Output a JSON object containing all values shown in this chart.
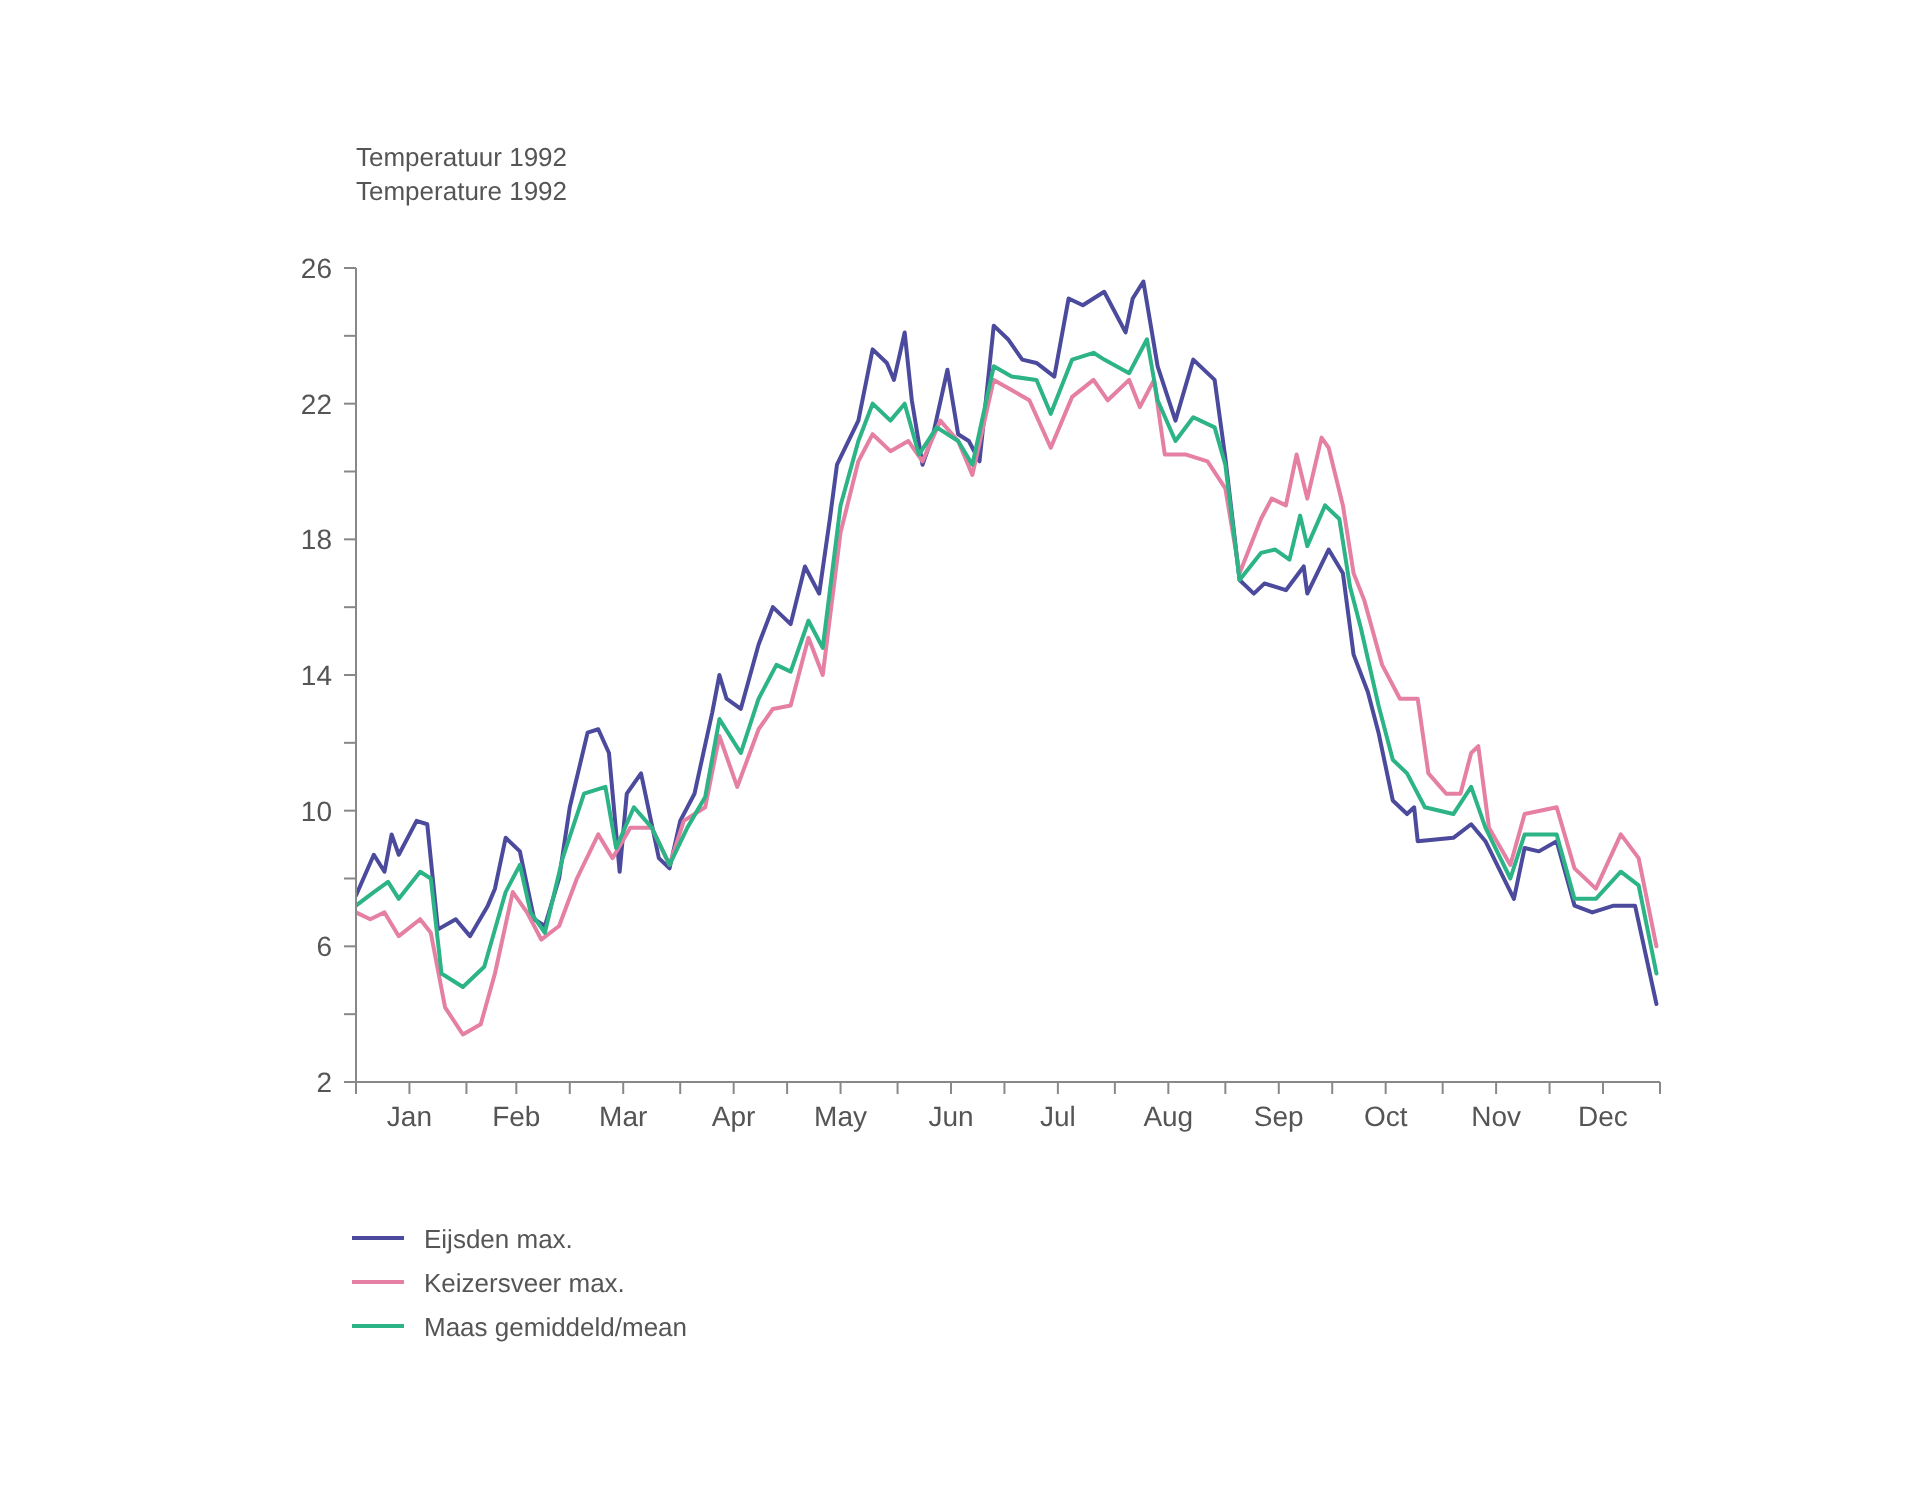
{
  "chart_data": {
    "type": "line",
    "title": "Temperatuur 1992",
    "subtitle": "Temperature 1992",
    "xlim": [
      "1992-01-01",
      "1993-01-01"
    ],
    "xticks": [
      {
        "value": "1992-01-01",
        "label": null
      },
      {
        "value": "1992-01-16",
        "label": "Jan"
      },
      {
        "value": "1992-02-01",
        "label": null
      },
      {
        "value": "1992-02-15",
        "label": "Feb"
      },
      {
        "value": "1992-03-01",
        "label": null
      },
      {
        "value": "1992-03-16",
        "label": "Mar"
      },
      {
        "value": "1992-04-01",
        "label": null
      },
      {
        "value": "1992-04-16",
        "label": "Apr"
      },
      {
        "value": "1992-05-01",
        "label": null
      },
      {
        "value": "1992-05-16",
        "label": "May"
      },
      {
        "value": "1992-06-01",
        "label": null
      },
      {
        "value": "1992-06-16",
        "label": "Jun"
      },
      {
        "value": "1992-07-01",
        "label": null
      },
      {
        "value": "1992-07-16",
        "label": "Jul"
      },
      {
        "value": "1992-08-01",
        "label": null
      },
      {
        "value": "1992-08-16",
        "label": "Aug"
      },
      {
        "value": "1992-09-01",
        "label": null
      },
      {
        "value": "1992-09-16",
        "label": "Sep"
      },
      {
        "value": "1992-10-01",
        "label": null
      },
      {
        "value": "1992-10-16",
        "label": "Oct"
      },
      {
        "value": "1992-11-01",
        "label": null
      },
      {
        "value": "1992-11-16",
        "label": "Nov"
      },
      {
        "value": "1992-12-01",
        "label": null
      },
      {
        "value": "1992-12-16",
        "label": "Dec"
      },
      {
        "value": "1993-01-01",
        "label": null
      }
    ],
    "ylim": [
      2,
      26
    ],
    "yticks": [
      2,
      {
        "value": 4,
        "label": null
      },
      6,
      {
        "value": 8,
        "label": null
      },
      10,
      {
        "value": 12,
        "label": null
      },
      14,
      {
        "value": 16,
        "label": null
      },
      18,
      {
        "value": 20,
        "label": null
      },
      22,
      {
        "value": 24,
        "label": null
      },
      26
    ],
    "grid": false,
    "legend": "bottom",
    "marker": "none",
    "line_style": "solid",
    "series": [
      {
        "name": "Eijsden max.",
        "color": "#4b4a9c",
        "x": [
          "1992-01-01",
          "1992-01-06",
          "1992-01-09",
          "1992-01-11",
          "1992-01-13",
          "1992-01-18",
          "1992-01-21",
          "1992-01-24",
          "1992-01-29",
          "1992-02-02",
          "1992-02-07",
          "1992-02-09",
          "1992-02-12",
          "1992-02-16",
          "1992-02-20",
          "1992-02-23",
          "1992-02-27",
          "1992-03-01",
          "1992-03-06",
          "1992-03-09",
          "1992-03-12",
          "1992-03-15",
          "1992-03-17",
          "1992-03-21",
          "1992-03-26",
          "1992-03-29",
          "1992-04-01",
          "1992-04-05",
          "1992-04-10",
          "1992-04-12",
          "1992-04-14",
          "1992-04-18",
          "1992-04-23",
          "1992-04-27",
          "1992-05-02",
          "1992-05-06",
          "1992-05-10",
          "1992-05-13",
          "1992-05-15",
          "1992-05-21",
          "1992-05-25",
          "1992-05-29",
          "1992-05-31",
          "1992-06-03",
          "1992-06-05",
          "1992-06-08",
          "1992-06-11",
          "1992-06-15",
          "1992-06-18",
          "1992-06-21",
          "1992-06-24",
          "1992-06-28",
          "1992-07-02",
          "1992-07-06",
          "1992-07-10",
          "1992-07-15",
          "1992-07-19",
          "1992-07-23",
          "1992-07-29",
          "1992-08-04",
          "1992-08-06",
          "1992-08-09",
          "1992-08-13",
          "1992-08-18",
          "1992-08-23",
          "1992-08-29",
          "1992-09-01",
          "1992-09-05",
          "1992-09-09",
          "1992-09-12",
          "1992-09-18",
          "1992-09-23",
          "1992-09-24",
          "1992-09-30",
          "1992-10-04",
          "1992-10-07",
          "1992-10-11",
          "1992-10-14",
          "1992-10-18",
          "1992-10-22",
          "1992-10-24",
          "1992-10-25",
          "1992-11-04",
          "1992-11-09",
          "1992-11-13",
          "1992-11-21",
          "1992-11-24",
          "1992-11-28",
          "1992-12-03",
          "1992-12-08",
          "1992-12-13",
          "1992-12-19",
          "1992-12-25",
          "1992-12-31"
        ],
        "values": [
          7.5,
          8.7,
          8.2,
          9.3,
          8.7,
          9.7,
          9.6,
          6.5,
          6.8,
          6.3,
          7.2,
          7.7,
          9.2,
          8.8,
          6.8,
          6.6,
          8.0,
          10.1,
          12.3,
          12.4,
          11.7,
          8.2,
          10.5,
          11.1,
          8.6,
          8.3,
          9.7,
          10.5,
          12.9,
          14.0,
          13.3,
          13.0,
          14.9,
          16.0,
          15.5,
          17.2,
          16.4,
          18.6,
          20.2,
          21.5,
          23.6,
          23.2,
          22.7,
          24.1,
          22.1,
          20.2,
          21.1,
          23.0,
          21.1,
          20.9,
          20.3,
          24.3,
          23.9,
          23.3,
          23.2,
          22.8,
          25.1,
          24.9,
          25.3,
          24.1,
          25.1,
          25.6,
          23.1,
          21.5,
          23.3,
          22.7,
          20.4,
          16.8,
          16.4,
          16.7,
          16.5,
          17.2,
          16.4,
          17.7,
          17.0,
          14.6,
          13.5,
          12.3,
          10.3,
          9.9,
          10.1,
          9.1,
          9.2,
          9.6,
          9.1,
          7.4,
          8.9,
          8.8,
          9.1,
          7.2,
          7.0,
          7.2,
          7.2,
          4.3
        ]
      },
      {
        "name": "Keizersveer max.",
        "color": "#e57fa3",
        "x": [
          "1992-01-01",
          "1992-01-05",
          "1992-01-09",
          "1992-01-13",
          "1992-01-19",
          "1992-01-22",
          "1992-01-26",
          "1992-01-31",
          "1992-02-05",
          "1992-02-09",
          "1992-02-14",
          "1992-02-18",
          "1992-02-22",
          "1992-02-27",
          "1992-03-03",
          "1992-03-09",
          "1992-03-13",
          "1992-03-18",
          "1992-03-24",
          "1992-03-29",
          "1992-04-02",
          "1992-04-08",
          "1992-04-12",
          "1992-04-17",
          "1992-04-23",
          "1992-04-27",
          "1992-05-02",
          "1992-05-07",
          "1992-05-11",
          "1992-05-16",
          "1992-05-21",
          "1992-05-25",
          "1992-05-30",
          "1992-06-04",
          "1992-06-08",
          "1992-06-13",
          "1992-06-18",
          "1992-06-22",
          "1992-06-28",
          "1992-07-03",
          "1992-07-08",
          "1992-07-14",
          "1992-07-20",
          "1992-07-26",
          "1992-07-30",
          "1992-08-05",
          "1992-08-08",
          "1992-08-12",
          "1992-08-15",
          "1992-08-21",
          "1992-08-27",
          "1992-09-01",
          "1992-09-05",
          "1992-09-11",
          "1992-09-14",
          "1992-09-18",
          "1992-09-21",
          "1992-09-24",
          "1992-09-28",
          "1992-09-30",
          "1992-10-04",
          "1992-10-07",
          "1992-10-10",
          "1992-10-15",
          "1992-10-20",
          "1992-10-25",
          "1992-10-28",
          "1992-11-02",
          "1992-11-06",
          "1992-11-09",
          "1992-11-11",
          "1992-11-14",
          "1992-11-20",
          "1992-11-24",
          "1992-12-03",
          "1992-12-08",
          "1992-12-14",
          "1992-12-21",
          "1992-12-26",
          "1992-12-31"
        ],
        "values": [
          7.0,
          6.8,
          7.0,
          6.3,
          6.8,
          6.4,
          4.2,
          3.4,
          3.7,
          5.2,
          7.6,
          7.0,
          6.2,
          6.6,
          8.0,
          9.3,
          8.6,
          9.5,
          9.5,
          8.4,
          9.7,
          10.1,
          12.2,
          10.7,
          12.4,
          13.0,
          13.1,
          15.1,
          14.0,
          18.2,
          20.3,
          21.1,
          20.6,
          20.9,
          20.3,
          21.5,
          20.9,
          19.9,
          22.7,
          22.4,
          22.1,
          20.7,
          22.2,
          22.7,
          22.1,
          22.7,
          21.9,
          22.7,
          20.5,
          20.5,
          20.3,
          19.5,
          17.0,
          18.6,
          19.2,
          19.0,
          20.5,
          19.2,
          21.0,
          20.7,
          19.0,
          17.0,
          16.2,
          14.3,
          13.3,
          13.3,
          11.1,
          10.5,
          10.5,
          11.7,
          11.9,
          9.5,
          8.4,
          9.9,
          10.1,
          8.3,
          7.7,
          9.3,
          8.6,
          6.0
        ]
      },
      {
        "name": "Maas gemiddeld/mean",
        "color": "#2cb486",
        "x": [
          "1992-01-01",
          "1992-01-06",
          "1992-01-10",
          "1992-01-13",
          "1992-01-19",
          "1992-01-22",
          "1992-01-25",
          "1992-01-31",
          "1992-02-06",
          "1992-02-12",
          "1992-02-16",
          "1992-02-19",
          "1992-02-23",
          "1992-02-28",
          "1992-03-05",
          "1992-03-11",
          "1992-03-14",
          "1992-03-19",
          "1992-03-24",
          "1992-03-29",
          "1992-04-03",
          "1992-04-08",
          "1992-04-12",
          "1992-04-18",
          "1992-04-23",
          "1992-04-28",
          "1992-05-02",
          "1992-05-07",
          "1992-05-11",
          "1992-05-16",
          "1992-05-21",
          "1992-05-25",
          "1992-05-30",
          "1992-06-03",
          "1992-06-07",
          "1992-06-12",
          "1992-06-18",
          "1992-06-22",
          "1992-06-28",
          "1992-07-03",
          "1992-07-10",
          "1992-07-14",
          "1992-07-20",
          "1992-07-26",
          "1992-07-29",
          "1992-08-05",
          "1992-08-10",
          "1992-08-13",
          "1992-08-18",
          "1992-08-23",
          "1992-08-29",
          "1992-09-01",
          "1992-09-05",
          "1992-09-11",
          "1992-09-15",
          "1992-09-19",
          "1992-09-22",
          "1992-09-24",
          "1992-09-29",
          "1992-10-03",
          "1992-10-06",
          "1992-10-09",
          "1992-10-14",
          "1992-10-18",
          "1992-10-22",
          "1992-10-27",
          "1992-11-04",
          "1992-11-09",
          "1992-11-13",
          "1992-11-20",
          "1992-11-24",
          "1992-12-03",
          "1992-12-08",
          "1992-12-14",
          "1992-12-21",
          "1992-12-26",
          "1992-12-31"
        ],
        "values": [
          7.2,
          7.6,
          7.9,
          7.4,
          8.2,
          8.0,
          5.2,
          4.8,
          5.4,
          7.6,
          8.4,
          7.0,
          6.4,
          8.6,
          10.5,
          10.7,
          8.9,
          10.1,
          9.5,
          8.4,
          9.5,
          10.4,
          12.7,
          11.7,
          13.3,
          14.3,
          14.1,
          15.6,
          14.8,
          19.0,
          20.9,
          22.0,
          21.5,
          22.0,
          20.5,
          21.3,
          20.9,
          20.2,
          23.1,
          22.8,
          22.7,
          21.7,
          23.3,
          23.5,
          23.3,
          22.9,
          23.9,
          22.1,
          20.9,
          21.6,
          21.3,
          20.2,
          16.8,
          17.6,
          17.7,
          17.4,
          18.7,
          17.8,
          19.0,
          18.6,
          16.6,
          15.4,
          13.1,
          11.5,
          11.1,
          10.1,
          9.9,
          10.7,
          9.5,
          8.0,
          9.3,
          9.3,
          7.4,
          7.4,
          8.2,
          7.8,
          5.2
        ]
      }
    ]
  }
}
